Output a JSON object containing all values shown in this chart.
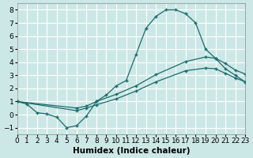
{
  "xlabel": "Humidex (Indice chaleur)",
  "bg_color": "#cce8e6",
  "grid_color": "#b8d8d8",
  "line_color": "#1a6b6b",
  "xlim": [
    0,
    23
  ],
  "ylim": [
    -1.5,
    8.5
  ],
  "xticks": [
    0,
    1,
    2,
    3,
    4,
    5,
    6,
    7,
    8,
    9,
    10,
    11,
    12,
    13,
    14,
    15,
    16,
    17,
    18,
    19,
    20,
    21,
    22,
    23
  ],
  "yticks": [
    -1,
    0,
    1,
    2,
    3,
    4,
    5,
    6,
    7,
    8
  ],
  "curve_x": [
    0,
    1,
    2,
    3,
    4,
    5,
    6,
    7,
    8,
    9,
    10,
    11,
    12,
    13,
    14,
    15,
    16,
    17,
    18,
    19,
    20,
    21,
    22,
    23
  ],
  "curve_y": [
    1.0,
    0.8,
    0.15,
    0.05,
    -0.2,
    -1.0,
    -0.85,
    -0.1,
    1.0,
    1.5,
    2.2,
    2.6,
    4.6,
    6.6,
    7.5,
    8.0,
    8.0,
    7.7,
    7.0,
    5.0,
    4.3,
    3.5,
    3.0,
    2.5
  ],
  "line_upper_x": [
    0,
    6,
    7,
    8,
    10,
    12,
    14,
    17,
    19,
    20,
    21,
    22,
    23
  ],
  "line_upper_y": [
    1.0,
    0.5,
    0.65,
    1.0,
    1.55,
    2.2,
    3.05,
    4.05,
    4.4,
    4.3,
    3.9,
    3.4,
    3.1
  ],
  "line_lower_x": [
    0,
    6,
    7,
    8,
    10,
    12,
    14,
    17,
    19,
    20,
    21,
    22,
    23
  ],
  "line_lower_y": [
    1.0,
    0.3,
    0.5,
    0.75,
    1.2,
    1.8,
    2.5,
    3.35,
    3.55,
    3.5,
    3.15,
    2.8,
    2.5
  ],
  "tick_fontsize": 6.5,
  "xlabel_fontsize": 7.5
}
